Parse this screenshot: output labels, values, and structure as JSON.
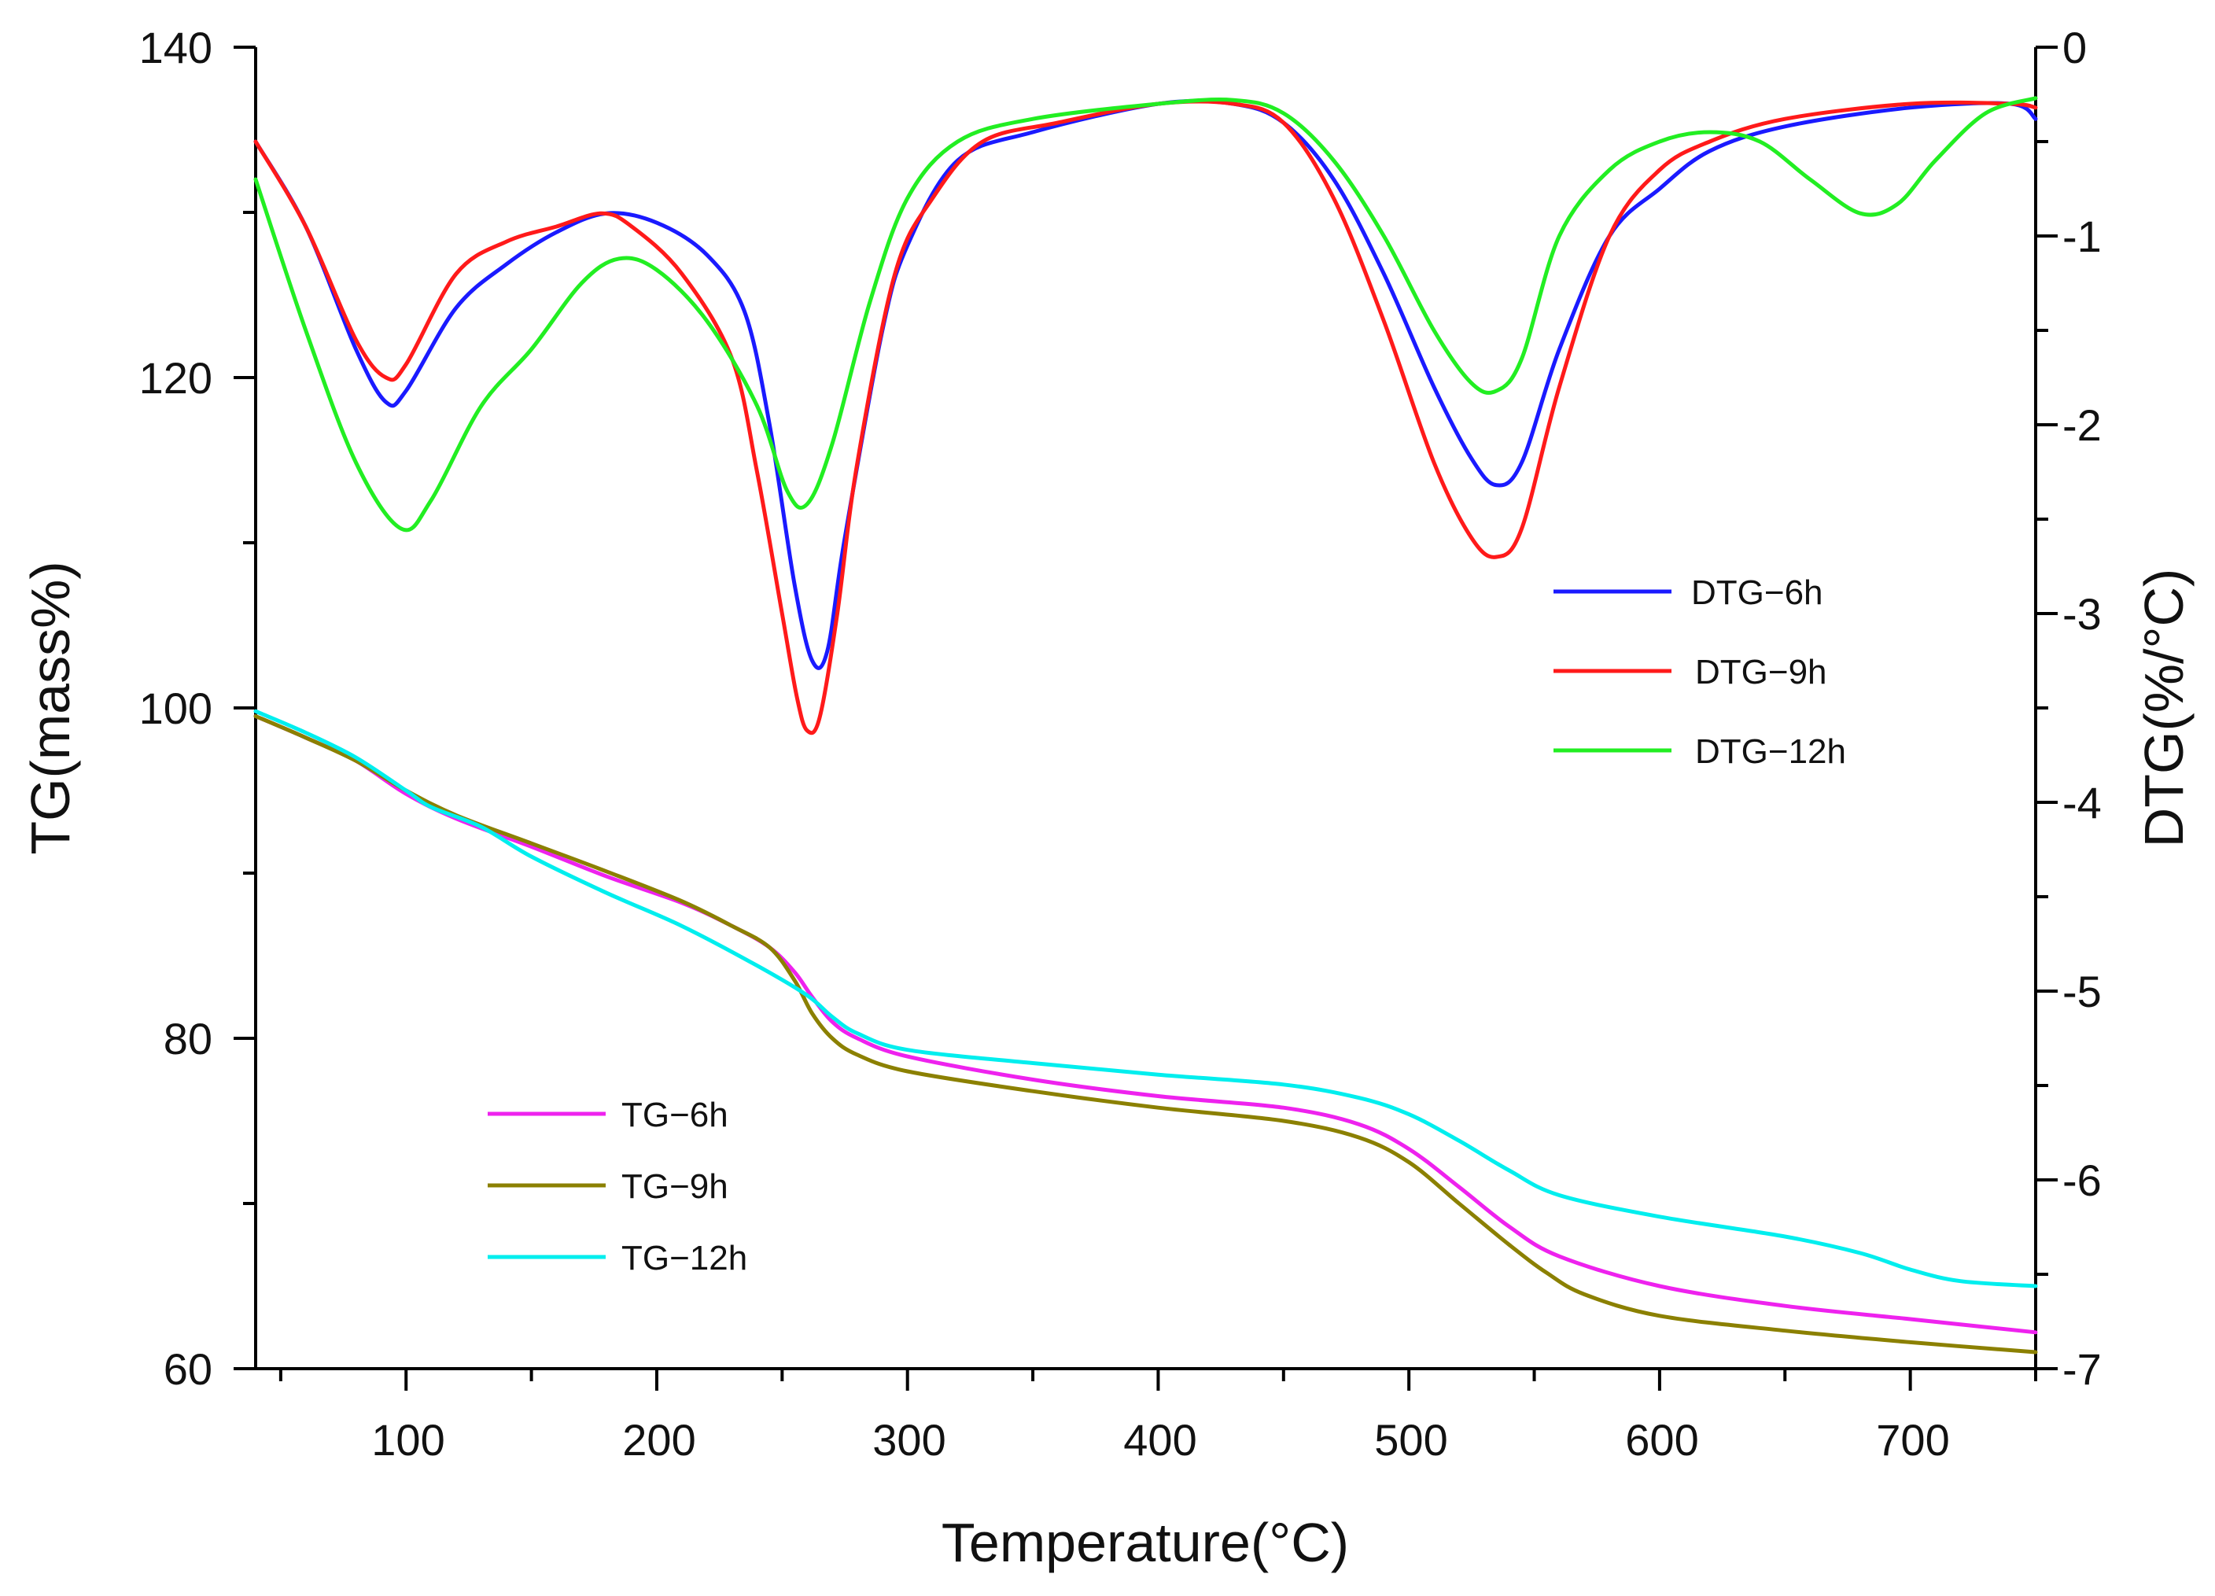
{
  "chart_data": {
    "type": "line",
    "title": "",
    "xlabel": "Temperature(°C)",
    "ylabel_left": "TG(mass%)",
    "ylabel_right": "DTG(%/°C)",
    "xlim": [
      40,
      750
    ],
    "ylim_left": [
      60,
      140
    ],
    "ylim_right": [
      -7,
      0
    ],
    "x_ticks": [
      "100",
      "200",
      "300",
      "400",
      "500",
      "600",
      "700"
    ],
    "y_left_ticks": [
      "60",
      "80",
      "100",
      "120",
      "140"
    ],
    "y_right_ticks": [
      "0",
      "-1",
      "-2",
      "-3",
      "-4",
      "-5",
      "-6",
      "-7"
    ],
    "grid": false,
    "legend_dtg_placement": "center-right",
    "legend_tg_placement": "bottom-left",
    "series": [
      {
        "name": "DTG−6h",
        "axis": "right",
        "color": "#1a1aff",
        "x": [
          40,
          60,
          80,
          92,
          100,
          120,
          140,
          160,
          180,
          200,
          220,
          235,
          245,
          255,
          262,
          268,
          275,
          290,
          300,
          320,
          350,
          400,
          430,
          450,
          470,
          490,
          510,
          525,
          535,
          545,
          560,
          580,
          600,
          620,
          650,
          700,
          740,
          750
        ],
        "y": [
          -0.5,
          -0.95,
          -1.6,
          -1.88,
          -1.82,
          -1.38,
          -1.15,
          -0.98,
          -0.88,
          -0.93,
          -1.1,
          -1.4,
          -2.0,
          -2.85,
          -3.25,
          -3.2,
          -2.6,
          -1.5,
          -1.05,
          -0.6,
          -0.45,
          -0.3,
          -0.3,
          -0.4,
          -0.7,
          -1.2,
          -1.8,
          -2.18,
          -2.32,
          -2.2,
          -1.6,
          -1.0,
          -0.75,
          -0.55,
          -0.42,
          -0.32,
          -0.3,
          -0.38
        ]
      },
      {
        "name": "DTG−9h",
        "axis": "right",
        "color": "#ff1a1a",
        "x": [
          40,
          60,
          80,
          92,
          100,
          120,
          140,
          160,
          178,
          190,
          210,
          230,
          240,
          250,
          256,
          260,
          265,
          272,
          280,
          295,
          310,
          330,
          360,
          400,
          430,
          450,
          470,
          490,
          510,
          525,
          535,
          545,
          560,
          580,
          600,
          620,
          650,
          700,
          740,
          750
        ],
        "y": [
          -0.5,
          -0.95,
          -1.55,
          -1.75,
          -1.68,
          -1.2,
          -1.03,
          -0.95,
          -0.88,
          -0.95,
          -1.2,
          -1.65,
          -2.25,
          -3.0,
          -3.45,
          -3.62,
          -3.55,
          -3.0,
          -2.2,
          -1.2,
          -0.8,
          -0.5,
          -0.4,
          -0.3,
          -0.3,
          -0.4,
          -0.8,
          -1.45,
          -2.2,
          -2.6,
          -2.7,
          -2.55,
          -1.8,
          -1.0,
          -0.65,
          -0.5,
          -0.38,
          -0.3,
          -0.3,
          -0.32
        ]
      },
      {
        "name": "DTG−12h",
        "axis": "right",
        "color": "#22ee22",
        "x": [
          40,
          60,
          80,
          98,
          110,
          130,
          150,
          170,
          185,
          200,
          220,
          240,
          252,
          260,
          270,
          285,
          300,
          320,
          350,
          400,
          430,
          450,
          470,
          490,
          510,
          525,
          535,
          545,
          560,
          580,
          600,
          620,
          640,
          660,
          680,
          695,
          710,
          730,
          750
        ],
        "y": [
          -0.7,
          -1.5,
          -2.2,
          -2.55,
          -2.4,
          -1.9,
          -1.6,
          -1.25,
          -1.12,
          -1.18,
          -1.45,
          -1.9,
          -2.35,
          -2.42,
          -2.1,
          -1.35,
          -0.8,
          -0.5,
          -0.38,
          -0.3,
          -0.28,
          -0.35,
          -0.6,
          -1.0,
          -1.5,
          -1.78,
          -1.82,
          -1.65,
          -1.0,
          -0.65,
          -0.5,
          -0.45,
          -0.5,
          -0.7,
          -0.88,
          -0.83,
          -0.6,
          -0.35,
          -0.27
        ]
      },
      {
        "name": "TG−6h",
        "axis": "left",
        "color": "#ee22ee",
        "x": [
          40,
          60,
          80,
          100,
          120,
          150,
          180,
          210,
          230,
          245,
          255,
          262,
          270,
          280,
          300,
          350,
          400,
          450,
          480,
          500,
          520,
          540,
          560,
          600,
          650,
          700,
          750
        ],
        "y": [
          99.5,
          98.2,
          96.8,
          94.8,
          93.3,
          91.6,
          89.8,
          88.2,
          86.8,
          85.5,
          84.0,
          82.5,
          81.0,
          80.0,
          78.9,
          77.5,
          76.5,
          75.8,
          74.8,
          73.3,
          71.0,
          68.6,
          66.8,
          65.0,
          63.8,
          63.0,
          62.2
        ]
      },
      {
        "name": "TG−9h",
        "axis": "left",
        "color": "#8b8000",
        "x": [
          40,
          60,
          80,
          100,
          120,
          150,
          180,
          210,
          230,
          245,
          255,
          262,
          270,
          280,
          300,
          350,
          400,
          450,
          480,
          500,
          520,
          540,
          555,
          570,
          600,
          650,
          700,
          750
        ],
        "y": [
          99.5,
          98.2,
          96.8,
          95.0,
          93.5,
          91.8,
          90.1,
          88.3,
          86.8,
          85.5,
          83.5,
          81.5,
          80.0,
          79.0,
          78.0,
          76.8,
          75.8,
          75.0,
          74.0,
          72.5,
          70.0,
          67.5,
          65.8,
          64.5,
          63.2,
          62.3,
          61.6,
          61.0
        ]
      },
      {
        "name": "TG−12h",
        "axis": "left",
        "color": "#00eeee",
        "x": [
          40,
          60,
          80,
          100,
          110,
          130,
          150,
          180,
          210,
          240,
          260,
          270,
          280,
          300,
          350,
          400,
          450,
          480,
          500,
          520,
          540,
          560,
          600,
          650,
          680,
          700,
          720,
          750
        ],
        "y": [
          99.8,
          98.5,
          97.0,
          95.0,
          94.0,
          92.8,
          91.0,
          88.8,
          86.8,
          84.4,
          82.6,
          81.3,
          80.3,
          79.3,
          78.5,
          77.8,
          77.2,
          76.4,
          75.4,
          73.8,
          72.0,
          70.5,
          69.2,
          68.0,
          67.0,
          66.0,
          65.3,
          65.0
        ]
      }
    ]
  }
}
